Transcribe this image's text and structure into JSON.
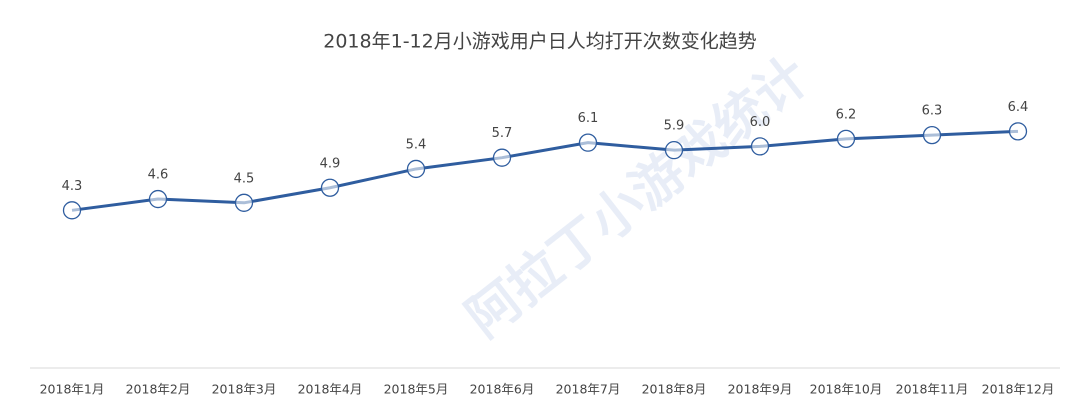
{
  "chart_data": {
    "type": "line",
    "title": "2018年1-12月小游戏用户日人均打开次数变化趋势",
    "categories": [
      "2018年1月",
      "2018年2月",
      "2018年3月",
      "2018年4月",
      "2018年5月",
      "2018年6月",
      "2018年7月",
      "2018年8月",
      "2018年9月",
      "2018年10月",
      "2018年11月",
      "2018年12月"
    ],
    "values": [
      4.3,
      4.6,
      4.5,
      4.9,
      5.4,
      5.7,
      6.1,
      5.9,
      6.0,
      6.2,
      6.3,
      6.4
    ],
    "value_labels": [
      "4.3",
      "4.6",
      "4.5",
      "4.9",
      "5.4",
      "5.7",
      "6.1",
      "5.9",
      "6.0",
      "6.2",
      "6.3",
      "6.4"
    ],
    "color": "#2f5d9f",
    "watermark": "阿拉丁小游戏统计"
  }
}
